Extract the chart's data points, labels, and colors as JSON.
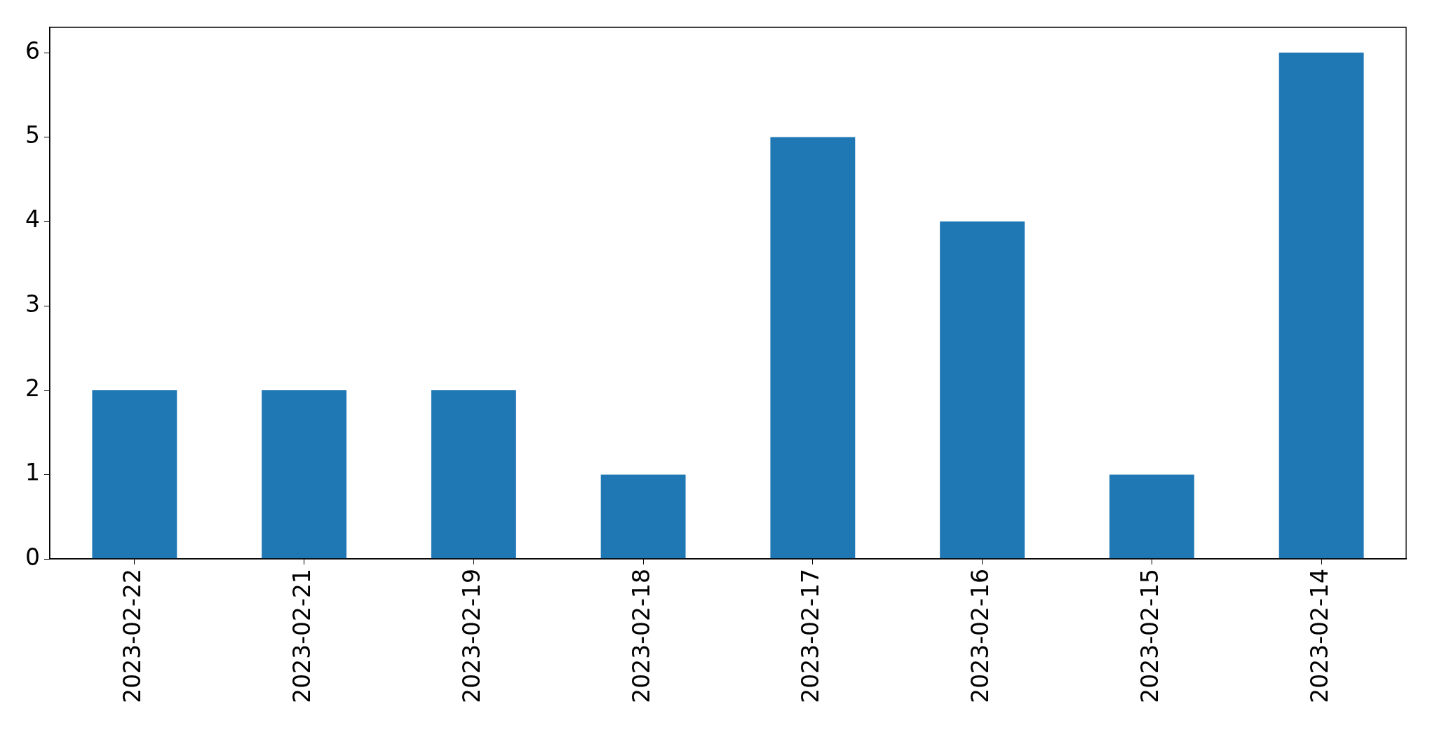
{
  "chart_data": {
    "type": "bar",
    "categories": [
      "2023-02-22",
      "2023-02-21",
      "2023-02-19",
      "2023-02-18",
      "2023-02-17",
      "2023-02-16",
      "2023-02-15",
      "2023-02-14"
    ],
    "values": [
      2,
      2,
      2,
      1,
      5,
      4,
      1,
      6
    ],
    "color": "#1f77b4",
    "ylim": [
      0,
      6.3
    ],
    "yticks": [
      0,
      1,
      2,
      3,
      4,
      5,
      6
    ]
  }
}
